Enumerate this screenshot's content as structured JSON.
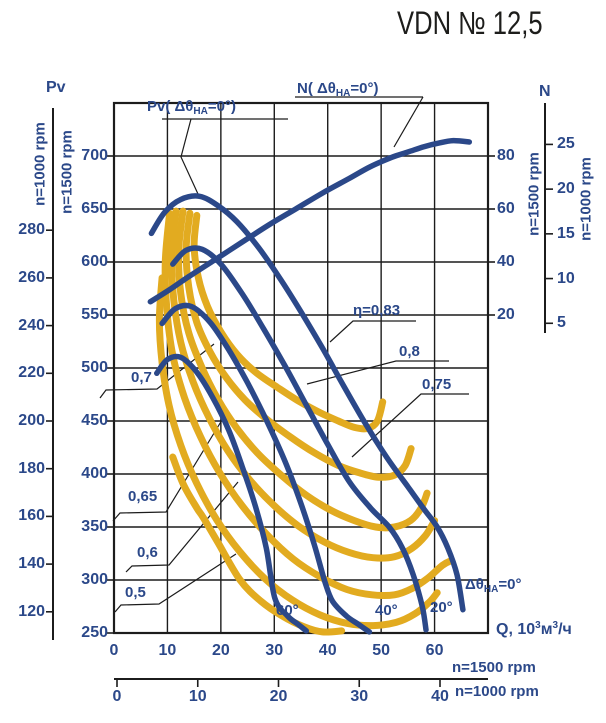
{
  "title": "VDN  № 12,5",
  "colors": {
    "navy": "#2b4889",
    "yellow": "#e2ab20",
    "grid": "#1c1c1c",
    "leader": "#1c1c1c",
    "title_text": "#1d1d1b"
  },
  "axis_labels": {
    "left_title": "Pv",
    "right_title": "N",
    "left_outer_unit": "n=1000 rpm",
    "left_inner_unit": "n=1500 rpm",
    "right_inner_unit": "n=1500 rpm",
    "right_outer_unit": "n=1000 rpm",
    "bottom_main_unit": "n=1500 rpm",
    "bottom_secondary_unit": "n=1000 rpm",
    "q_label": {
      "p1": "Q, 10",
      "s1": "3",
      "p2": "м",
      "s2": "3",
      "p3": "/ч"
    }
  },
  "ticks": {
    "left_inner": [
      700,
      650,
      600,
      550,
      500,
      450,
      400,
      350,
      300,
      250
    ],
    "left_outer": [
      280,
      260,
      240,
      220,
      200,
      180,
      160,
      140,
      120
    ],
    "right_inner": [
      80,
      60,
      40,
      20
    ],
    "right_outer": [
      25,
      20,
      15,
      10,
      5
    ],
    "bottom_main": [
      0,
      10,
      20,
      30,
      40,
      50,
      60
    ],
    "bottom_secondary": [
      0,
      10,
      20,
      30,
      40
    ]
  },
  "curve_labels": {
    "pv": {
      "p1": "Pv( Δθ",
      "sub": "HA",
      "p3": "=0°)"
    },
    "n": {
      "p1": "N( Δθ",
      "sub": "HA",
      "p3": "=0°)"
    },
    "theta0": {
      "p1": "Δθ",
      "sub": "HA",
      "p3": "=0°"
    }
  },
  "chart_data": {
    "type": "line",
    "title": "VDN № 12,5",
    "xlabel": "Q, 10³м³/ч",
    "x_axis": {
      "range_1500rpm": [
        0,
        70
      ],
      "grid_step": 10,
      "secondary_1000rpm_ticks": [
        0,
        10,
        20,
        30,
        40
      ]
    },
    "y_left_axis": {
      "label": "Pv",
      "range_1500rpm": [
        250,
        750
      ],
      "grid_step": 50,
      "outer_1000rpm_ticks": [
        280,
        260,
        240,
        220,
        200,
        180,
        160,
        140,
        120
      ]
    },
    "y_right_axis": {
      "label": "N",
      "ticks_1500rpm": [
        80,
        60,
        40,
        20
      ],
      "outer_1000rpm_ticks": [
        25,
        20,
        15,
        10,
        5
      ]
    },
    "grid": true,
    "pressure_curves": [
      {
        "angle": "0°",
        "points": [
          [
            7,
            627
          ],
          [
            9.5,
            647
          ],
          [
            12.5,
            659
          ],
          [
            16,
            662
          ],
          [
            19.5,
            653
          ],
          [
            23,
            638
          ],
          [
            27,
            614
          ],
          [
            31,
            585
          ],
          [
            35,
            553
          ],
          [
            39,
            519
          ],
          [
            43,
            483
          ],
          [
            47,
            448
          ],
          [
            51,
            416
          ],
          [
            55,
            388
          ],
          [
            58,
            367
          ],
          [
            60.5,
            350
          ],
          [
            62.5,
            330
          ],
          [
            64.2,
            305
          ],
          [
            65.3,
            272
          ]
        ]
      },
      {
        "angle": "20°",
        "points": [
          [
            11,
            598
          ],
          [
            13.5,
            611
          ],
          [
            16.5,
            612
          ],
          [
            20,
            598
          ],
          [
            24,
            570
          ],
          [
            28,
            537
          ],
          [
            32,
            502
          ],
          [
            36,
            465
          ],
          [
            40,
            428
          ],
          [
            44,
            393
          ],
          [
            48,
            368
          ],
          [
            51.5,
            350
          ],
          [
            54,
            330
          ],
          [
            56,
            305
          ],
          [
            57.7,
            275
          ],
          [
            58.4,
            253
          ]
        ]
      },
      {
        "angle": "40°",
        "points": [
          [
            9,
            542
          ],
          [
            11.5,
            556
          ],
          [
            14.5,
            558
          ],
          [
            18,
            543
          ],
          [
            21.5,
            517
          ],
          [
            25,
            486
          ],
          [
            28.5,
            451
          ],
          [
            32,
            412
          ],
          [
            35,
            372
          ],
          [
            37.5,
            333
          ],
          [
            39.5,
            298
          ],
          [
            40.9,
            280
          ],
          [
            43.5,
            266
          ],
          [
            45.8,
            258
          ],
          [
            47.8,
            251
          ]
        ]
      },
      {
        "angle": "60°",
        "points": [
          [
            8,
            495
          ],
          [
            10,
            508
          ],
          [
            12.5,
            510
          ],
          [
            15.5,
            496
          ],
          [
            18.5,
            472
          ],
          [
            21.5,
            441
          ],
          [
            24,
            407
          ],
          [
            26.5,
            369
          ],
          [
            28.5,
            330
          ],
          [
            30.1,
            283
          ],
          [
            32.5,
            266
          ],
          [
            34.5,
            258
          ],
          [
            36,
            252
          ]
        ]
      }
    ],
    "power_curve": {
      "name": "N( ΔθHA=0°)",
      "scale": "N on right 1500 rpm axis",
      "points": [
        [
          6.8,
          25
        ],
        [
          10,
          29
        ],
        [
          14,
          34.5
        ],
        [
          19,
          41
        ],
        [
          24,
          47.5
        ],
        [
          29,
          54
        ],
        [
          34,
          60
        ],
        [
          39,
          66
        ],
        [
          44,
          71.5
        ],
        [
          48,
          76
        ],
        [
          52,
          79.5
        ],
        [
          55,
          81.5
        ],
        [
          58,
          83.5
        ],
        [
          61,
          85
        ],
        [
          63.5,
          85.8
        ],
        [
          66.5,
          85.3
        ]
      ]
    },
    "efficiency_curves": [
      {
        "label": "η=0,83",
        "eta": 0.83,
        "points": [
          [
            15.5,
            644
          ],
          [
            15.0,
            615
          ],
          [
            15.8,
            585
          ],
          [
            17.5,
            558
          ],
          [
            20,
            534
          ],
          [
            23,
            513
          ],
          [
            26.5,
            496
          ],
          [
            30.5,
            482
          ],
          [
            34.5,
            469
          ],
          [
            38.5,
            458
          ],
          [
            42,
            450
          ],
          [
            45,
            444
          ],
          [
            47.5,
            443
          ],
          [
            49.3,
            450
          ],
          [
            50.3,
            468
          ]
        ]
      },
      {
        "label": "0,8",
        "eta": 0.8,
        "points": [
          [
            14.2,
            646
          ],
          [
            13.5,
            612
          ],
          [
            14.0,
            576
          ],
          [
            15.5,
            543
          ],
          [
            18,
            515
          ],
          [
            21,
            491
          ],
          [
            24.5,
            470
          ],
          [
            28.5,
            452
          ],
          [
            33,
            435
          ],
          [
            37.5,
            420
          ],
          [
            42,
            408
          ],
          [
            46,
            401
          ],
          [
            49.5,
            397
          ],
          [
            52.5,
            399
          ],
          [
            54.5,
            408
          ],
          [
            55.6,
            424
          ]
        ]
      },
      {
        "label": "0,75",
        "eta": 0.75,
        "points": [
          [
            12.9,
            648
          ],
          [
            12.1,
            610
          ],
          [
            12.5,
            570
          ],
          [
            14,
            533
          ],
          [
            16.5,
            500
          ],
          [
            19.5,
            470
          ],
          [
            23,
            443
          ],
          [
            27,
            419
          ],
          [
            31.5,
            398
          ],
          [
            36,
            380
          ],
          [
            40.5,
            366
          ],
          [
            45,
            356
          ],
          [
            49,
            350
          ],
          [
            52.5,
            350
          ],
          [
            55.5,
            356
          ],
          [
            57.5,
            368
          ],
          [
            58.6,
            382
          ]
        ]
      },
      {
        "label": "0,7",
        "eta": 0.7,
        "points": [
          [
            11.6,
            648
          ],
          [
            10.8,
            606
          ],
          [
            11.2,
            564
          ],
          [
            12.5,
            524
          ],
          [
            14.8,
            487
          ],
          [
            17.8,
            453
          ],
          [
            21.3,
            422
          ],
          [
            25.3,
            395
          ],
          [
            29.8,
            371
          ],
          [
            34.5,
            351
          ],
          [
            39.3,
            336
          ],
          [
            44,
            326
          ],
          [
            48.5,
            321
          ],
          [
            52.5,
            322
          ],
          [
            55.8,
            330
          ],
          [
            58.3,
            342
          ],
          [
            60,
            356
          ]
        ]
      },
      {
        "label": "0,65",
        "eta": 0.65,
        "points": [
          [
            10.4,
            646
          ],
          [
            9.6,
            600
          ],
          [
            9.9,
            555
          ],
          [
            11,
            512
          ],
          [
            13.2,
            472
          ],
          [
            16.2,
            435
          ],
          [
            19.8,
            401
          ],
          [
            24,
            370
          ],
          [
            28.6,
            343
          ],
          [
            33.5,
            320
          ],
          [
            38.6,
            303
          ],
          [
            43.6,
            291
          ],
          [
            48.3,
            286
          ],
          [
            52.5,
            286
          ],
          [
            55.8,
            292
          ],
          [
            58.8,
            302
          ],
          [
            61.5,
            314
          ],
          [
            63,
            318
          ]
        ]
      },
      {
        "label": "0,6",
        "eta": 0.6,
        "points": [
          [
            9.0,
            585
          ],
          [
            8.5,
            545
          ],
          [
            9.0,
            505
          ],
          [
            10.3,
            465
          ],
          [
            12.5,
            427
          ],
          [
            15.5,
            391
          ],
          [
            19.2,
            357
          ],
          [
            23.5,
            327
          ],
          [
            28.3,
            301
          ],
          [
            33.4,
            281
          ],
          [
            38.6,
            267
          ],
          [
            43.7,
            259
          ],
          [
            48.5,
            257
          ],
          [
            52.8,
            260
          ],
          [
            56.3,
            268
          ],
          [
            59,
            279
          ],
          [
            60.5,
            288
          ]
        ]
      },
      {
        "label": "0,5",
        "eta": 0.5,
        "points": [
          [
            11,
            416
          ],
          [
            13,
            390
          ],
          [
            15.5,
            368
          ],
          [
            16.7,
            359
          ],
          [
            19.5,
            335
          ],
          [
            23.6,
            300
          ],
          [
            27.5,
            280
          ],
          [
            31.5,
            266
          ],
          [
            35.5,
            256
          ],
          [
            39,
            251
          ],
          [
            42.6,
            252
          ]
        ]
      }
    ]
  }
}
